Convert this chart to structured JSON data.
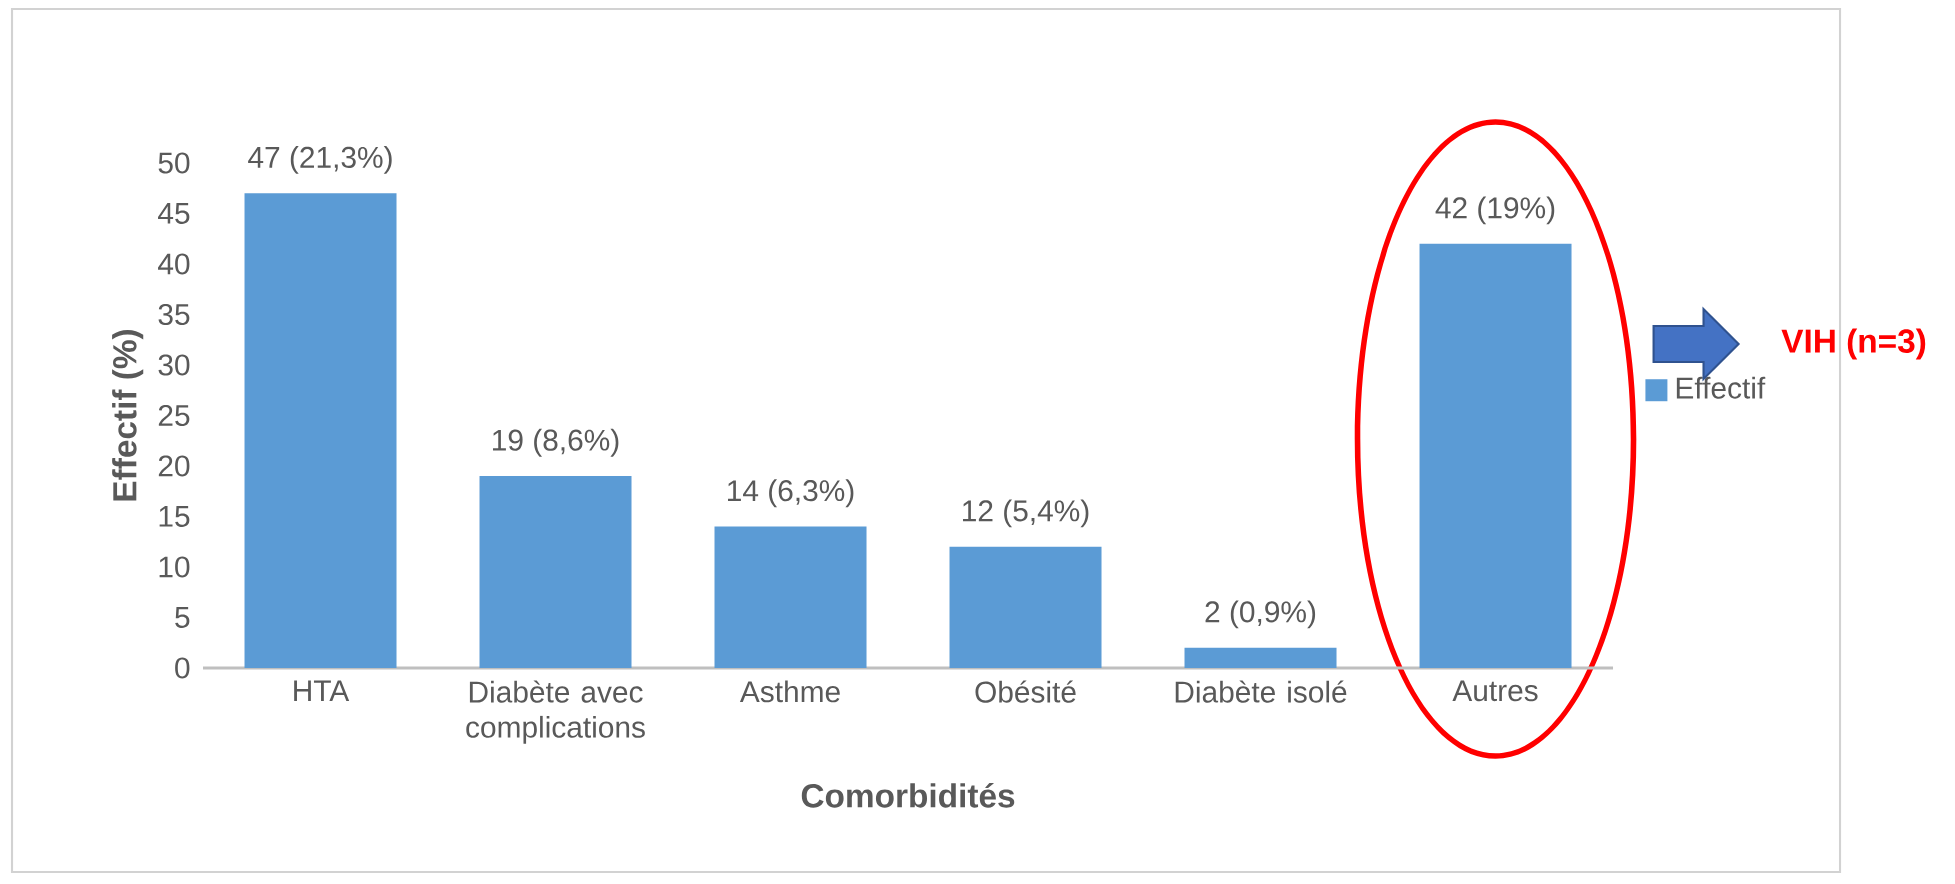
{
  "chart_data": {
    "type": "bar",
    "xlabel": "Comorbidités",
    "ylabel": "Effectif (%)",
    "categories": [
      "HTA",
      "Diabète avec complications",
      "Asthme",
      "Obésité",
      "Diabète isolé",
      "Autres"
    ],
    "series": [
      {
        "name": "Effectif",
        "color": "#5b9bd5",
        "values": [
          47,
          19,
          14,
          12,
          2,
          42
        ],
        "value_labels": [
          "47 (21,3%)",
          "19 (8,6%)",
          "14 (6,3%)",
          "12 (5,4%)",
          "2 (0,9%)",
          "42 (19%)"
        ]
      }
    ],
    "ylim": [
      0,
      50
    ],
    "yticks": [
      0,
      5,
      10,
      15,
      20,
      25,
      30,
      35,
      40,
      45,
      50
    ],
    "legend": "right",
    "annotations": [
      "VIH (n=3)"
    ]
  }
}
